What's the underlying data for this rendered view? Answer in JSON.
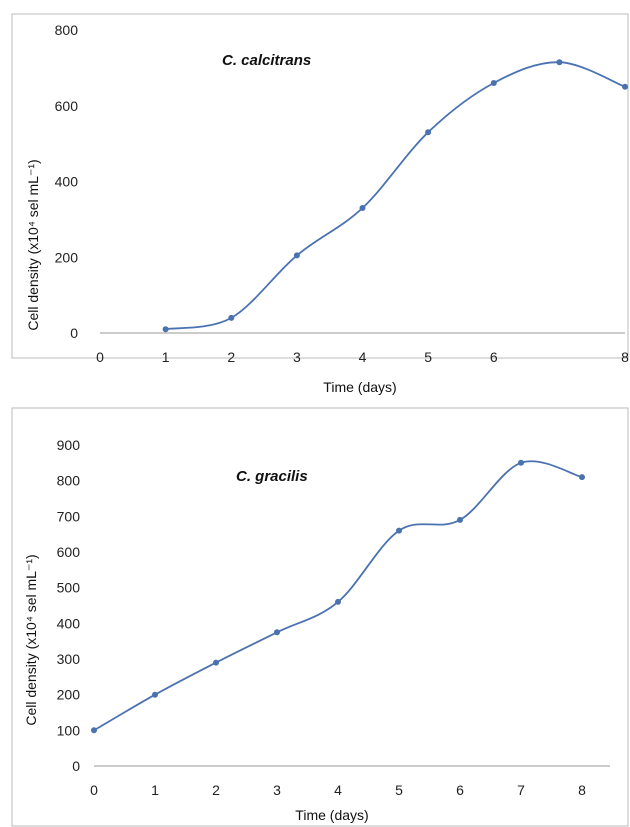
{
  "chart_data": [
    {
      "type": "line",
      "title": "C. calcitrans",
      "xlabel": "Time (days)",
      "ylabel": "Cell density (x10⁴ sel mL⁻¹)",
      "x": [
        1,
        2,
        3,
        4,
        5,
        6,
        7,
        8
      ],
      "xticks": [
        "0",
        "1",
        "2",
        "3",
        "4",
        "5",
        "6",
        "8"
      ],
      "yticks": [
        "0",
        "200",
        "400",
        "600",
        "800"
      ],
      "xlim": [
        0,
        8
      ],
      "ylim": [
        0,
        800
      ],
      "series": [
        {
          "values": [
            10,
            40,
            205,
            330,
            530,
            660,
            715,
            650
          ],
          "color": "#4a72b0"
        }
      ],
      "grid": false,
      "legend": "none"
    },
    {
      "type": "line",
      "title": "C. gracilis",
      "xlabel": "Time (days)",
      "ylabel": "Cell density (x10⁴ sel mL⁻¹)",
      "x": [
        0,
        1,
        2,
        3,
        4,
        5,
        6,
        7,
        8
      ],
      "xticks": [
        "0",
        "1",
        "2",
        "3",
        "4",
        "5",
        "6",
        "7",
        "8"
      ],
      "yticks": [
        "0",
        "100",
        "200",
        "300",
        "400",
        "500",
        "600",
        "700",
        "800",
        "900"
      ],
      "xlim": [
        0,
        8
      ],
      "ylim": [
        0,
        900
      ],
      "series": [
        {
          "values": [
            100,
            200,
            290,
            375,
            460,
            660,
            690,
            850,
            810
          ],
          "color": "#4a72b0"
        }
      ],
      "grid": false,
      "legend": "none"
    }
  ]
}
